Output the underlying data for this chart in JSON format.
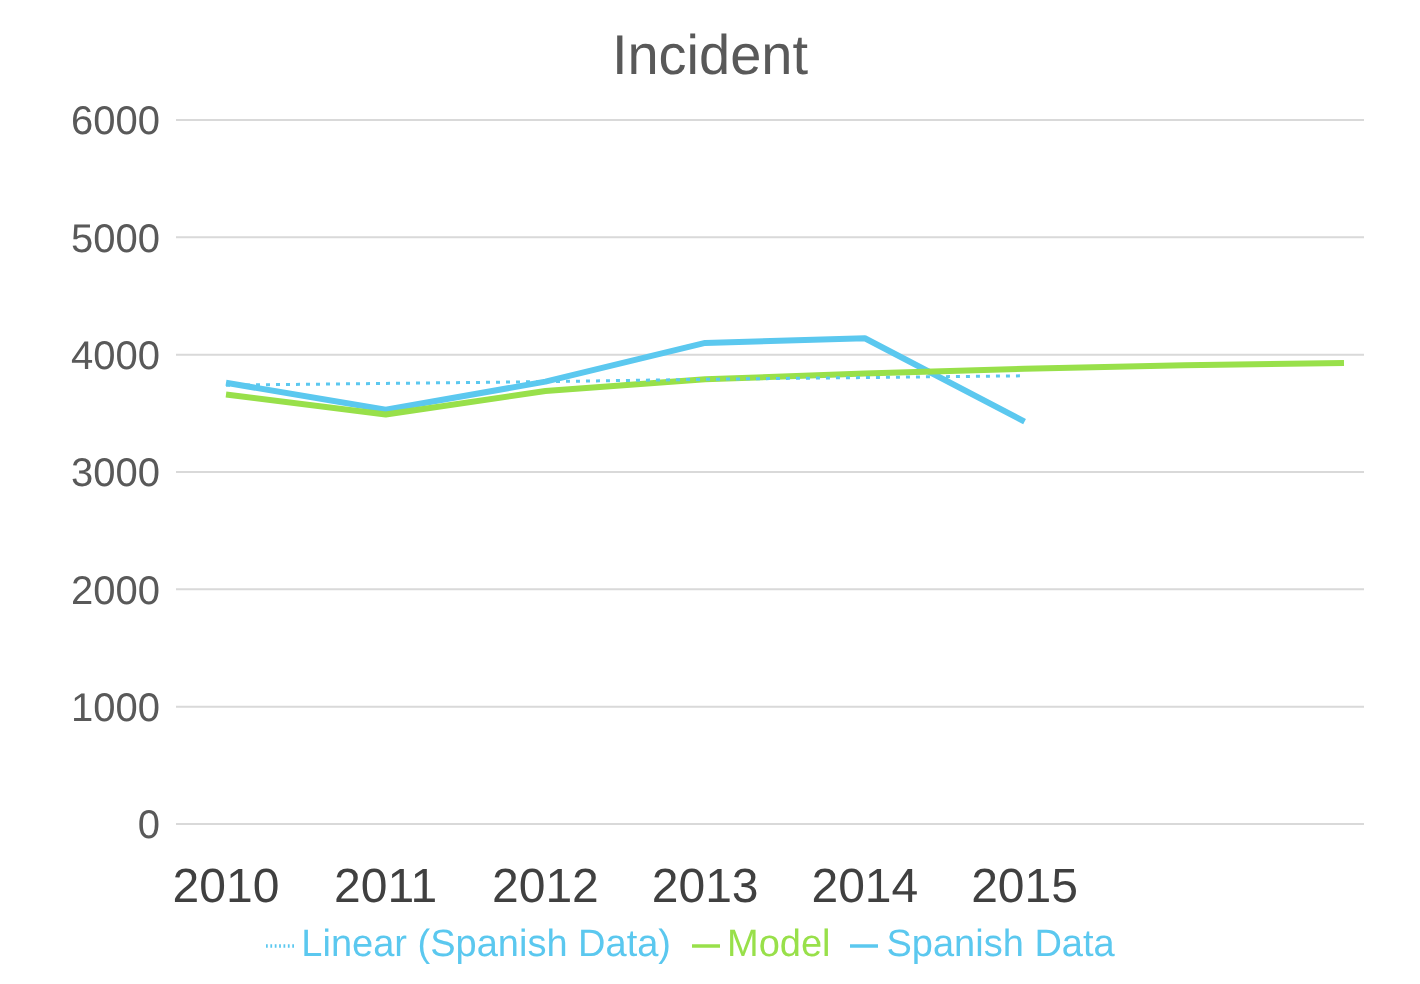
{
  "chart_data": {
    "type": "line",
    "title": "Incident",
    "categories": [
      "2010",
      "2011",
      "2012",
      "2013",
      "2014",
      "2015",
      null,
      null
    ],
    "series": [
      {
        "name": "Spanish Data",
        "color": "#5bc8ef",
        "values": [
          3760,
          3530,
          3770,
          4100,
          4140,
          3430,
          null,
          null
        ]
      },
      {
        "name": "Model",
        "color": "#98e04a",
        "values": [
          3660,
          3490,
          3690,
          3790,
          3840,
          3880,
          3910,
          3930
        ]
      },
      {
        "name": "Linear (Spanish Data)",
        "color": "#5bc8ef",
        "line_style": "dotted",
        "values": [
          3740,
          3755,
          3770,
          3790,
          3805,
          3820,
          null,
          null
        ]
      }
    ],
    "ylim": [
      0,
      6000
    ],
    "yticks": [
      0,
      1000,
      2000,
      3000,
      4000,
      5000,
      6000
    ],
    "grid": "y",
    "legend": "bottom",
    "marker": "none",
    "line_style": "solid"
  }
}
